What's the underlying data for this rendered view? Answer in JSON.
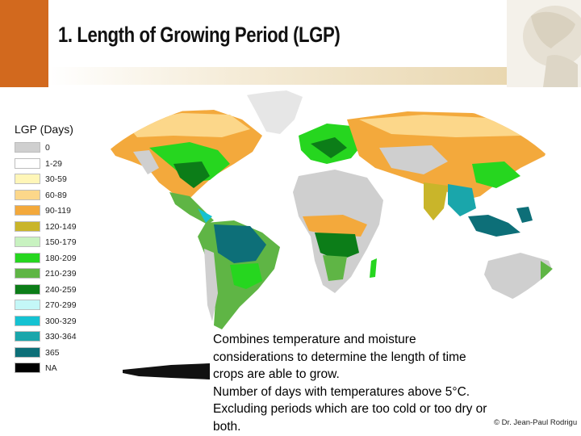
{
  "slide": {
    "title": "1. Length of Growing Period (LGP)",
    "legend_title": "LGP (Days)",
    "legend": [
      {
        "label": "0",
        "color": "#cfcfcf"
      },
      {
        "label": "1-29",
        "color": "#ffffff"
      },
      {
        "label": "30-59",
        "color": "#fff6b8"
      },
      {
        "label": "60-89",
        "color": "#fcd78a"
      },
      {
        "label": "90-119",
        "color": "#f3a93c"
      },
      {
        "label": "120-149",
        "color": "#c9b52a"
      },
      {
        "label": "150-179",
        "color": "#c8f2c0"
      },
      {
        "label": "180-209",
        "color": "#26d61f"
      },
      {
        "label": "210-239",
        "color": "#5fb545"
      },
      {
        "label": "240-259",
        "color": "#0c7d18"
      },
      {
        "label": "270-299",
        "color": "#c4f7f7"
      },
      {
        "label": "300-329",
        "color": "#15c2d2"
      },
      {
        "label": "330-364",
        "color": "#1aa6ab"
      },
      {
        "label": "365",
        "color": "#0d6f78"
      },
      {
        "label": "NA",
        "color": "#000000"
      }
    ],
    "caption_lines": [
      "Combines temperature and moisture",
      "considerations to determine the length of time",
      "crops are able to grow.",
      "Number of days with temperatures above 5°C.",
      "Excluding periods which are too cold or too dry or",
      "both."
    ],
    "credit": "© Dr. Jean-Paul Rodrigu"
  }
}
